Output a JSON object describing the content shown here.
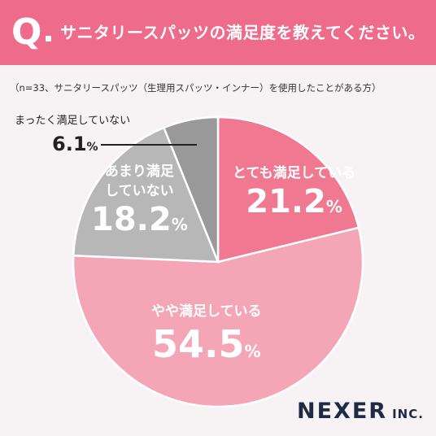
{
  "header": {
    "q_mark": "Q",
    "question": "サニタリースパッツの満足度を教えてください。"
  },
  "note": "（n=33、サニタリースパッツ（生理用スパッツ・インナー）を使用したことがある方）",
  "unit": "%",
  "colors": {
    "header": "#ef6b8b",
    "slice_1": "#f07891",
    "slice_2": "#f5a6b6",
    "slice_3": "#b7b7b7",
    "slice_4": "#999999"
  },
  "chart_data": {
    "type": "pie",
    "title": "サニタリースパッツの満足度を教えてください。",
    "slices": [
      {
        "label": "とても満足している",
        "value": 21.2
      },
      {
        "label": "やや満足している",
        "value": 54.5
      },
      {
        "label": "あまり満足していない",
        "value": 18.2
      },
      {
        "label": "まったく満足していない",
        "value": 6.1
      }
    ]
  },
  "labels": {
    "s1_name": "とても満足している",
    "s1_pct": "21.2",
    "s2_name": "やや満足している",
    "s2_pct": "54.5",
    "s3_name_line1": "あまり満足",
    "s3_name_line2": "していない",
    "s3_pct": "18.2",
    "s4_name": "まったく満足していない",
    "s4_pct": "6.1"
  },
  "logo": {
    "main": "NEXER",
    "suffix": "INC."
  }
}
